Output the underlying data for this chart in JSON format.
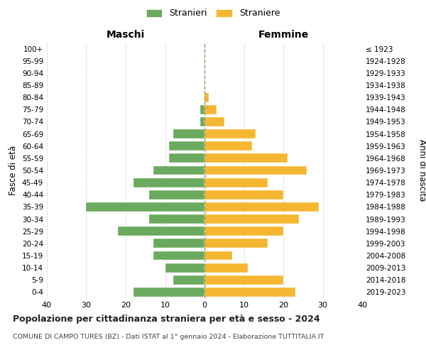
{
  "age_groups": [
    "0-4",
    "5-9",
    "10-14",
    "15-19",
    "20-24",
    "25-29",
    "30-34",
    "35-39",
    "40-44",
    "45-49",
    "50-54",
    "55-59",
    "60-64",
    "65-69",
    "70-74",
    "75-79",
    "80-84",
    "85-89",
    "90-94",
    "95-99",
    "100+"
  ],
  "birth_years": [
    "2019-2023",
    "2014-2018",
    "2009-2013",
    "2004-2008",
    "1999-2003",
    "1994-1998",
    "1989-1993",
    "1984-1988",
    "1979-1983",
    "1974-1978",
    "1969-1973",
    "1964-1968",
    "1959-1963",
    "1954-1958",
    "1949-1953",
    "1944-1948",
    "1939-1943",
    "1934-1938",
    "1929-1933",
    "1924-1928",
    "≤ 1923"
  ],
  "males": [
    18,
    8,
    10,
    13,
    13,
    22,
    14,
    30,
    14,
    18,
    13,
    9,
    9,
    8,
    1,
    1,
    0,
    0,
    0,
    0,
    0
  ],
  "females": [
    23,
    20,
    11,
    7,
    16,
    20,
    24,
    29,
    20,
    16,
    26,
    21,
    12,
    13,
    5,
    3,
    1,
    0,
    0,
    0,
    0
  ],
  "male_color": "#6aaa5e",
  "female_color": "#f5b731",
  "background_color": "#ffffff",
  "grid_color": "#cccccc",
  "title": "Popolazione per cittadinanza straniera per età e sesso - 2024",
  "subtitle": "COMUNE DI CAMPO TURES (BZ) - Dati ISTAT al 1° gennaio 2024 - Elaborazione TUTTITALIA.IT",
  "xlabel_left": "Maschi",
  "xlabel_right": "Femmine",
  "ylabel_left": "Fasce di età",
  "ylabel_right": "Anni di nascita",
  "legend_male": "Stranieri",
  "legend_female": "Straniere",
  "xlim": 40,
  "center_line_color": "#999966"
}
